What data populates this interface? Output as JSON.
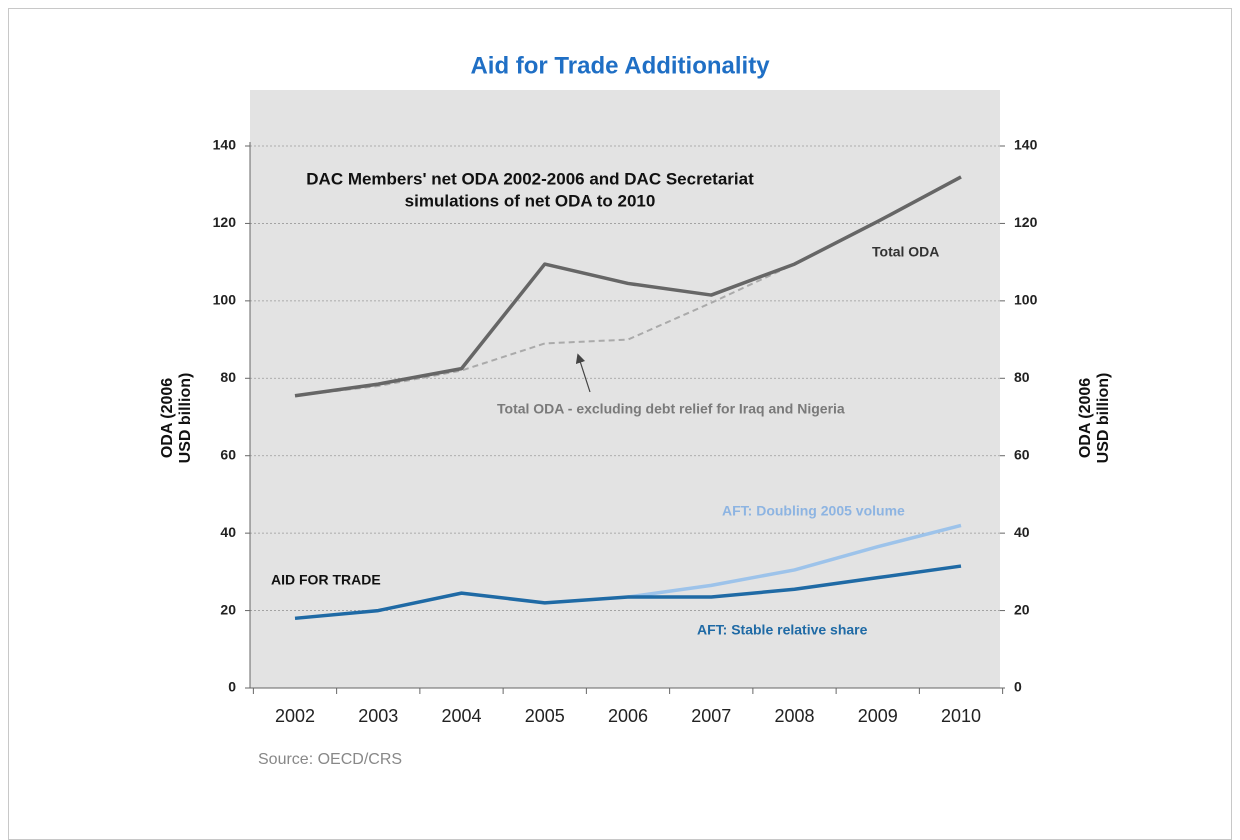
{
  "chart_data": {
    "type": "line",
    "title": "Aid for Trade Additionality",
    "subtitle_lines": [
      "DAC Members' net ODA 2002-2006 and DAC Secretariat",
      "simulations of net ODA to 2010"
    ],
    "y_label_lines": [
      "ODA (2006",
      "USD billion)"
    ],
    "source": "Source: OECD/CRS",
    "annotations": {
      "total": "Total ODA",
      "excl": "Total ODA - excluding debt relief for Iraq and Nigeria",
      "doubling": "AFT: Doubling 2005 volume",
      "stable": "AFT: Stable relative share",
      "aft": "AID FOR TRADE"
    },
    "categories": [
      "2002",
      "2003",
      "2004",
      "2005",
      "2006",
      "2007",
      "2008",
      "2009",
      "2010"
    ],
    "series": [
      {
        "name": "Total ODA",
        "color": "#666666",
        "dash": false,
        "values": [
          75.5,
          78.5,
          82.5,
          109.5,
          104.5,
          101.5,
          109.5,
          120.5,
          132
        ]
      },
      {
        "name": "Total ODA - excluding debt relief for Iraq and Nigeria",
        "color": "#aaaaaa",
        "dash": true,
        "values": [
          75.5,
          78,
          82,
          89,
          90,
          99.5,
          109.5,
          null,
          null
        ]
      },
      {
        "name": "AFT: Doubling 2005 volume",
        "color": "#9dc3ea",
        "dash": false,
        "values": [
          null,
          null,
          null,
          null,
          23.5,
          26.5,
          30.5,
          36.5,
          42
        ]
      },
      {
        "name": "AFT: Stable relative share",
        "color": "#1f6aa5",
        "dash": false,
        "values": [
          18,
          20,
          24.5,
          22,
          23.5,
          23.5,
          25.5,
          28.5,
          31.5
        ]
      }
    ],
    "ylim": [
      0,
      140
    ],
    "yticks": [
      0,
      20,
      40,
      60,
      80,
      100,
      120,
      140
    ],
    "y2lim": [
      0,
      140
    ],
    "y2ticks": [
      0,
      20,
      40,
      60,
      80,
      100,
      120,
      140
    ],
    "grid": true
  }
}
